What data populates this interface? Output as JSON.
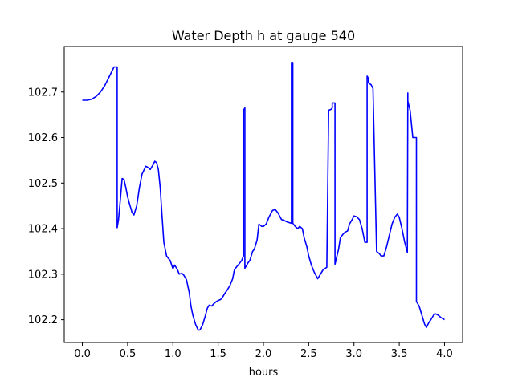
{
  "chart_data": {
    "type": "line",
    "title": "Water Depth h at gauge 540",
    "xlabel": "hours",
    "ylabel": "",
    "xlim": [
      -0.2,
      4.2
    ],
    "ylim": [
      102.15,
      102.8
    ],
    "xticks": [
      "0.0",
      "0.5",
      "1.0",
      "1.5",
      "2.0",
      "2.5",
      "3.0",
      "3.5",
      "4.0"
    ],
    "yticks": [
      "102.2",
      "102.3",
      "102.4",
      "102.5",
      "102.6",
      "102.7"
    ],
    "grid": false,
    "legend": "none",
    "series": [
      {
        "color": "#0000ff",
        "x": [
          0.0,
          0.05,
          0.1,
          0.15,
          0.2,
          0.25,
          0.3,
          0.35,
          0.385,
          0.385,
          0.4,
          0.42,
          0.44,
          0.46,
          0.48,
          0.5,
          0.52,
          0.55,
          0.57,
          0.6,
          0.63,
          0.66,
          0.7,
          0.72,
          0.75,
          0.78,
          0.8,
          0.82,
          0.84,
          0.86,
          0.88,
          0.9,
          0.93,
          0.95,
          0.97,
          1.0,
          1.02,
          1.05,
          1.07,
          1.1,
          1.12,
          1.15,
          1.18,
          1.2,
          1.22,
          1.25,
          1.28,
          1.3,
          1.33,
          1.36,
          1.38,
          1.4,
          1.43,
          1.45,
          1.48,
          1.5,
          1.53,
          1.55,
          1.58,
          1.6,
          1.63,
          1.66,
          1.68,
          1.7,
          1.72,
          1.74,
          1.76,
          1.78,
          1.78,
          1.795,
          1.795,
          1.81,
          1.83,
          1.85,
          1.88,
          1.9,
          1.93,
          1.95,
          1.98,
          2.0,
          2.03,
          2.06,
          2.1,
          2.13,
          2.16,
          2.2,
          2.23,
          2.26,
          2.29,
          2.31,
          2.31,
          2.325,
          2.325,
          2.35,
          2.38,
          2.4,
          2.43,
          2.45,
          2.48,
          2.5,
          2.53,
          2.56,
          2.6,
          2.63,
          2.66,
          2.7,
          2.72,
          2.75,
          2.76,
          2.76,
          2.79,
          2.79,
          2.8,
          2.83,
          2.85,
          2.88,
          2.9,
          2.93,
          2.95,
          2.98,
          3.0,
          3.03,
          3.06,
          3.09,
          3.12,
          3.145,
          3.145,
          3.16,
          3.16,
          3.19,
          3.21,
          3.21,
          3.25,
          3.28,
          3.3,
          3.33,
          3.36,
          3.39,
          3.42,
          3.45,
          3.48,
          3.5,
          3.53,
          3.56,
          3.59,
          3.595,
          3.595,
          3.62,
          3.65,
          3.69,
          3.69,
          3.72,
          3.75,
          3.78,
          3.8,
          3.83,
          3.85,
          3.88,
          3.9,
          3.93,
          3.96,
          4.0
        ],
        "y": [
          102.682,
          102.682,
          102.684,
          102.69,
          102.7,
          102.715,
          102.735,
          102.755,
          102.755,
          102.402,
          102.42,
          102.465,
          102.51,
          102.508,
          102.49,
          102.47,
          102.455,
          102.435,
          102.43,
          102.45,
          102.49,
          102.52,
          102.537,
          102.535,
          102.53,
          102.54,
          102.548,
          102.545,
          102.53,
          102.49,
          102.43,
          102.37,
          102.34,
          102.335,
          102.33,
          102.312,
          102.32,
          102.31,
          102.3,
          102.302,
          102.298,
          102.288,
          102.26,
          102.23,
          102.21,
          102.19,
          102.177,
          102.178,
          102.19,
          102.21,
          102.225,
          102.232,
          102.23,
          102.235,
          102.24,
          102.242,
          102.245,
          102.25,
          102.26,
          102.265,
          102.275,
          102.29,
          102.31,
          102.315,
          102.32,
          102.325,
          102.33,
          102.34,
          102.66,
          102.665,
          102.313,
          102.318,
          102.325,
          102.33,
          102.35,
          102.355,
          102.375,
          102.41,
          102.405,
          102.405,
          102.41,
          102.425,
          102.44,
          102.442,
          102.435,
          102.42,
          102.418,
          102.415,
          102.413,
          102.412,
          102.765,
          102.765,
          102.412,
          102.405,
          102.4,
          102.405,
          102.4,
          102.38,
          102.36,
          102.34,
          102.32,
          102.305,
          102.29,
          102.3,
          102.31,
          102.315,
          102.66,
          102.662,
          102.665,
          102.676,
          102.676,
          102.322,
          102.33,
          102.355,
          102.38,
          102.388,
          102.392,
          102.395,
          102.41,
          102.42,
          102.428,
          102.426,
          102.42,
          102.4,
          102.37,
          102.37,
          102.735,
          102.73,
          102.72,
          102.716,
          102.708,
          102.708,
          102.35,
          102.345,
          102.34,
          102.34,
          102.36,
          102.385,
          102.41,
          102.425,
          102.432,
          102.425,
          102.4,
          102.37,
          102.348,
          102.698,
          102.68,
          102.66,
          102.6,
          102.6,
          102.24,
          102.23,
          102.21,
          102.19,
          102.183,
          102.195,
          102.2,
          102.21,
          102.213,
          102.21,
          102.205,
          102.2
        ]
      }
    ]
  }
}
